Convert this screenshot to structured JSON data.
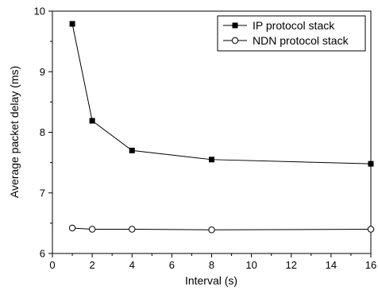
{
  "chart_data": {
    "type": "line",
    "title": "",
    "xlabel": "Interval (s)",
    "ylabel": "Average packet delay (ms)",
    "xlim": [
      0,
      16
    ],
    "ylim": [
      6,
      10
    ],
    "x_major_ticks": [
      0,
      2,
      4,
      6,
      8,
      10,
      12,
      14,
      16
    ],
    "y_major_ticks": [
      6,
      7,
      8,
      9,
      10
    ],
    "grid": false,
    "legend_position": "top-right",
    "series": [
      {
        "name": "IP protocol stack",
        "marker": "filled-square",
        "color": "#000000",
        "x": [
          1,
          2,
          4,
          8,
          16
        ],
        "y": [
          9.79,
          8.19,
          7.7,
          7.55,
          7.48
        ]
      },
      {
        "name": "NDN protocol stack",
        "marker": "hollow-circle",
        "color": "#000000",
        "x": [
          1,
          2,
          4,
          8,
          16
        ],
        "y": [
          6.42,
          6.4,
          6.4,
          6.39,
          6.4
        ]
      }
    ]
  }
}
